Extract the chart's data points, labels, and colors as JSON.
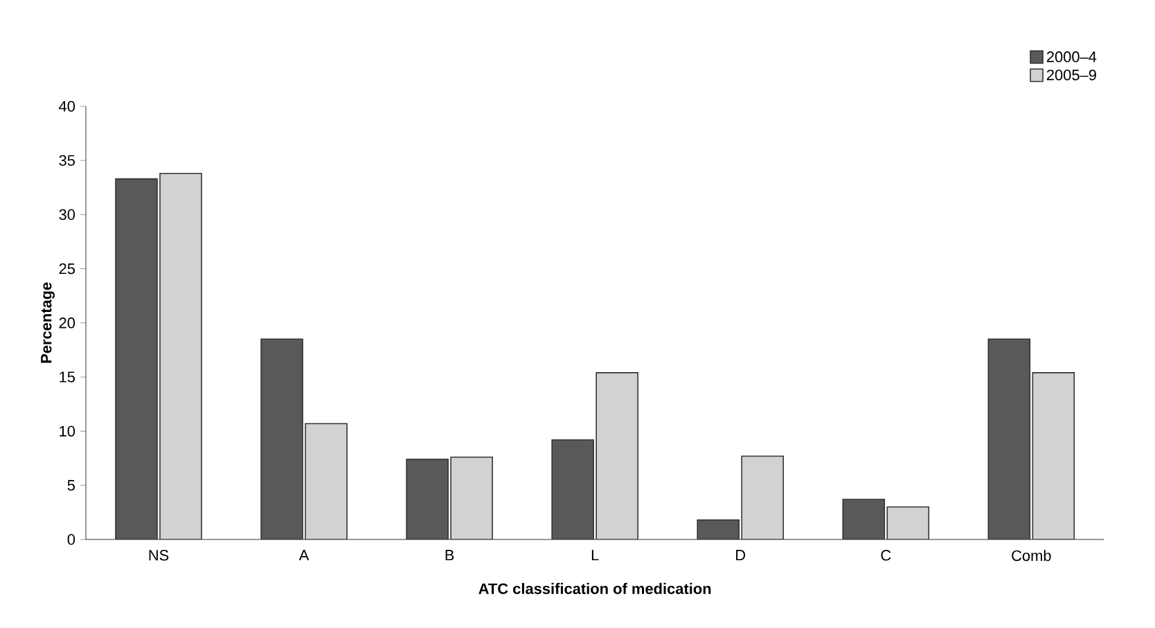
{
  "chart_data": {
    "type": "bar",
    "xlabel": "ATC classification of medication",
    "ylabel": "Percentage",
    "categories": [
      "NS",
      "A",
      "B",
      "L",
      "D",
      "C",
      "Comb"
    ],
    "series": [
      {
        "name": "2000–4",
        "color": "#58595b",
        "values": [
          33.3,
          18.5,
          7.4,
          9.2,
          1.8,
          3.7,
          18.5
        ]
      },
      {
        "name": "2005–9",
        "color": "#d1d2d4",
        "values": [
          33.8,
          10.7,
          7.6,
          15.4,
          7.7,
          3.0,
          15.4
        ]
      }
    ],
    "ylim": [
      0,
      40
    ],
    "yticks": [
      0,
      5,
      10,
      15,
      20,
      25,
      30,
      35,
      40
    ],
    "grid": false,
    "legend": "top right"
  }
}
